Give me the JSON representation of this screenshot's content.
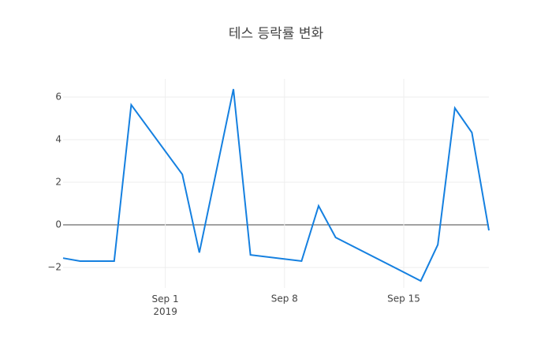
{
  "chart_data": {
    "type": "line",
    "title": "테스 등락률 변화",
    "x": [
      "2019-08-26",
      "2019-08-27",
      "2019-08-29",
      "2019-08-30",
      "2019-09-02",
      "2019-09-03",
      "2019-09-05",
      "2019-09-06",
      "2019-09-09",
      "2019-09-10",
      "2019-09-11",
      "2019-09-16",
      "2019-09-17",
      "2019-09-18",
      "2019-09-19",
      "2019-09-20"
    ],
    "series": [
      {
        "name": "등락률",
        "color": "#1580e0",
        "values": [
          -1.56,
          -1.7,
          -1.7,
          5.63,
          2.37,
          -1.3,
          6.37,
          -1.41,
          -1.7,
          0.89,
          -0.59,
          -2.63,
          -0.93,
          5.48,
          4.33,
          -0.26
        ]
      }
    ],
    "xlim": [
      "2019-08-26",
      "2019-09-20"
    ],
    "xticks": [
      {
        "value": "2019-09-01",
        "label": "Sep 1\n2019"
      },
      {
        "value": "2019-09-08",
        "label": "Sep 8"
      },
      {
        "value": "2019-09-15",
        "label": "Sep 15"
      }
    ],
    "ylim": [
      -2.96,
      6.85
    ],
    "yticks": [
      {
        "value": -2,
        "label": "−2"
      },
      0,
      2,
      4,
      6
    ],
    "grid": true,
    "legend": false
  }
}
